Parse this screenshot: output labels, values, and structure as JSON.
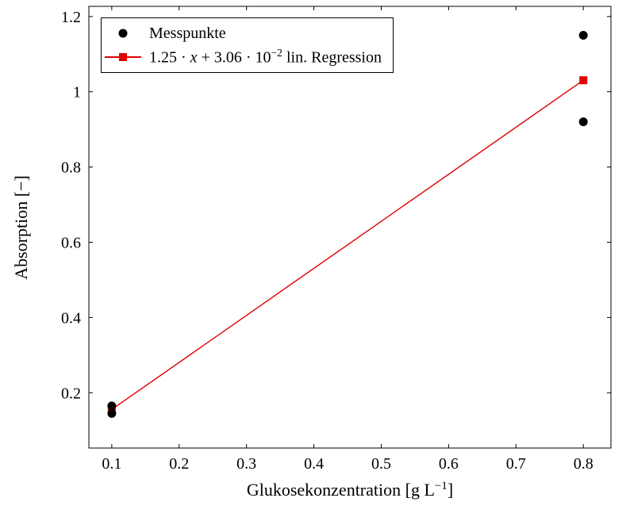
{
  "chart_data": {
    "type": "scatter",
    "title": "",
    "xlabel": "Glukosekonzentration [g L⁻¹]",
    "ylabel": "Absorption [−]",
    "x_ticks": [
      0.1,
      0.2,
      0.3,
      0.4,
      0.5,
      0.6,
      0.7,
      0.8
    ],
    "x_tick_labels": [
      "0.1",
      "0.2",
      "0.3",
      "0.4",
      "0.5",
      "0.6",
      "0.7",
      "0.8"
    ],
    "y_ticks": [
      0.2,
      0.4,
      0.6,
      0.8,
      1.0,
      1.2
    ],
    "y_tick_labels": [
      "0.2",
      "0.4",
      "0.6",
      "0.8",
      "1",
      "1.2"
    ],
    "xlim": [
      0.066,
      0.841
    ],
    "ylim": [
      0.053,
      1.227
    ],
    "grid": false,
    "legend_position": "top-left",
    "series": [
      {
        "name": "Messpunkte",
        "type": "scatter",
        "marker": "circle",
        "color": "#000000",
        "points": [
          [
            0.1,
            0.165
          ],
          [
            0.1,
            0.145
          ],
          [
            0.8,
            1.15
          ],
          [
            0.8,
            0.92
          ]
        ]
      },
      {
        "name": "1.25 · x + 3.06 · 10⁻² lin. Regression",
        "type": "line",
        "marker": "square",
        "color": "#e00000",
        "equation": {
          "slope": 1.25,
          "intercept": 0.0306
        },
        "points": [
          [
            0.1,
            0.1556
          ],
          [
            0.8,
            1.0306
          ]
        ]
      }
    ]
  },
  "labels": {
    "xlabel": {
      "main": "Glukosekonzentration [g L",
      "sup": "−1",
      "close": "]"
    },
    "ylabel": "Absorption [−]"
  },
  "legend": {
    "entries": [
      {
        "label": "Messpunkte"
      },
      {
        "parts": {
          "pre": "1.25 · ",
          "var": "x",
          "mid": " + 3.06 · 10",
          "sup": "−2",
          "post": " lin. Regression"
        }
      }
    ]
  }
}
